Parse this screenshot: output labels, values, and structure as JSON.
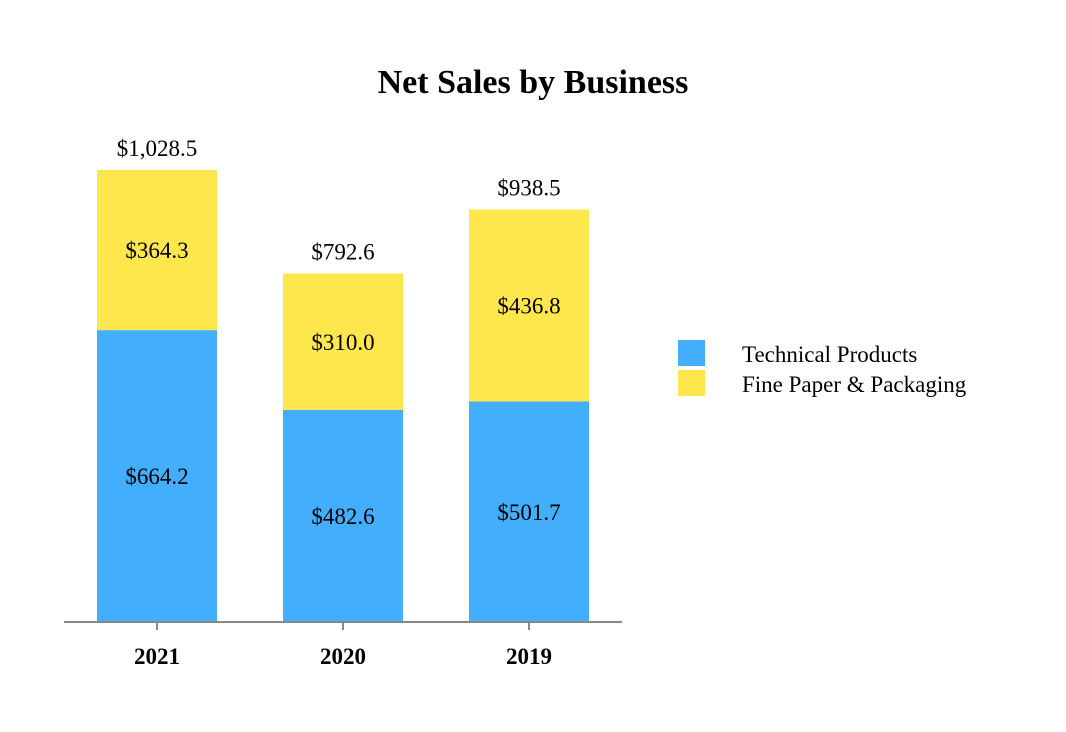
{
  "chart_data": {
    "type": "bar",
    "stacked": true,
    "title": "Net Sales by Business",
    "categories": [
      "2021",
      "2020",
      "2019"
    ],
    "series": [
      {
        "name": "Technical Products",
        "values": [
          664.2,
          482.6,
          501.7
        ],
        "color": "#42AEFC",
        "labels": [
          "$664.2",
          "$482.6",
          "$501.7"
        ]
      },
      {
        "name": "Fine Paper & Packaging",
        "values": [
          364.3,
          310.0,
          436.8
        ],
        "color": "#FDE74C",
        "labels": [
          "$364.3",
          "$310.0",
          "$436.8"
        ]
      }
    ],
    "totals": [
      1028.5,
      792.6,
      938.5
    ],
    "total_labels": [
      "$1,028.5",
      "$792.6",
      "$938.5"
    ],
    "ylim": [
      0,
      1028.5
    ],
    "grid": false,
    "legend_position": "right"
  }
}
